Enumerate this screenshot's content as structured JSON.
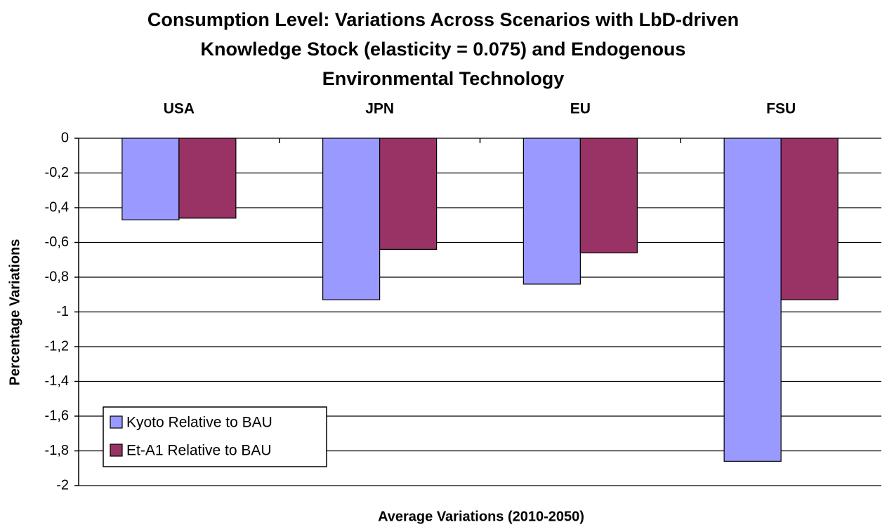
{
  "chart_data": {
    "type": "bar",
    "title": [
      "Consumption Level: Variations Across Scenarios with LbD-driven",
      "Knowledge Stock (elasticity = 0.075) and Endogenous",
      "Environmental Technology"
    ],
    "x_label": "Average Variations (2010-2050)",
    "y_label": "Percentage Variations",
    "categories": [
      "USA",
      "JPN",
      "EU",
      "FSU"
    ],
    "series": [
      {
        "name": "Kyoto Relative to BAU",
        "color": "#9999ff",
        "values": [
          -0.47,
          -0.93,
          -0.84,
          -1.86
        ]
      },
      {
        "name": "Et-A1 Relative to BAU",
        "color": "#993366",
        "values": [
          -0.46,
          -0.64,
          -0.66,
          -0.93
        ]
      }
    ],
    "ylim": [
      -2,
      0
    ],
    "yticks": [
      0,
      {
        "value": -0.2,
        "label": "-0,2"
      },
      {
        "value": -0.4,
        "label": "-0,4"
      },
      {
        "value": -0.6,
        "label": "-0,6"
      },
      {
        "value": -0.8,
        "label": "-0,8"
      },
      -1,
      {
        "value": -1.2,
        "label": "-1,2"
      },
      {
        "value": -1.4,
        "label": "-1,4"
      },
      {
        "value": -1.6,
        "label": "-1,6"
      },
      {
        "value": -1.8,
        "label": "-1,8"
      },
      -2
    ],
    "grid": true,
    "legend": "lower-left"
  }
}
